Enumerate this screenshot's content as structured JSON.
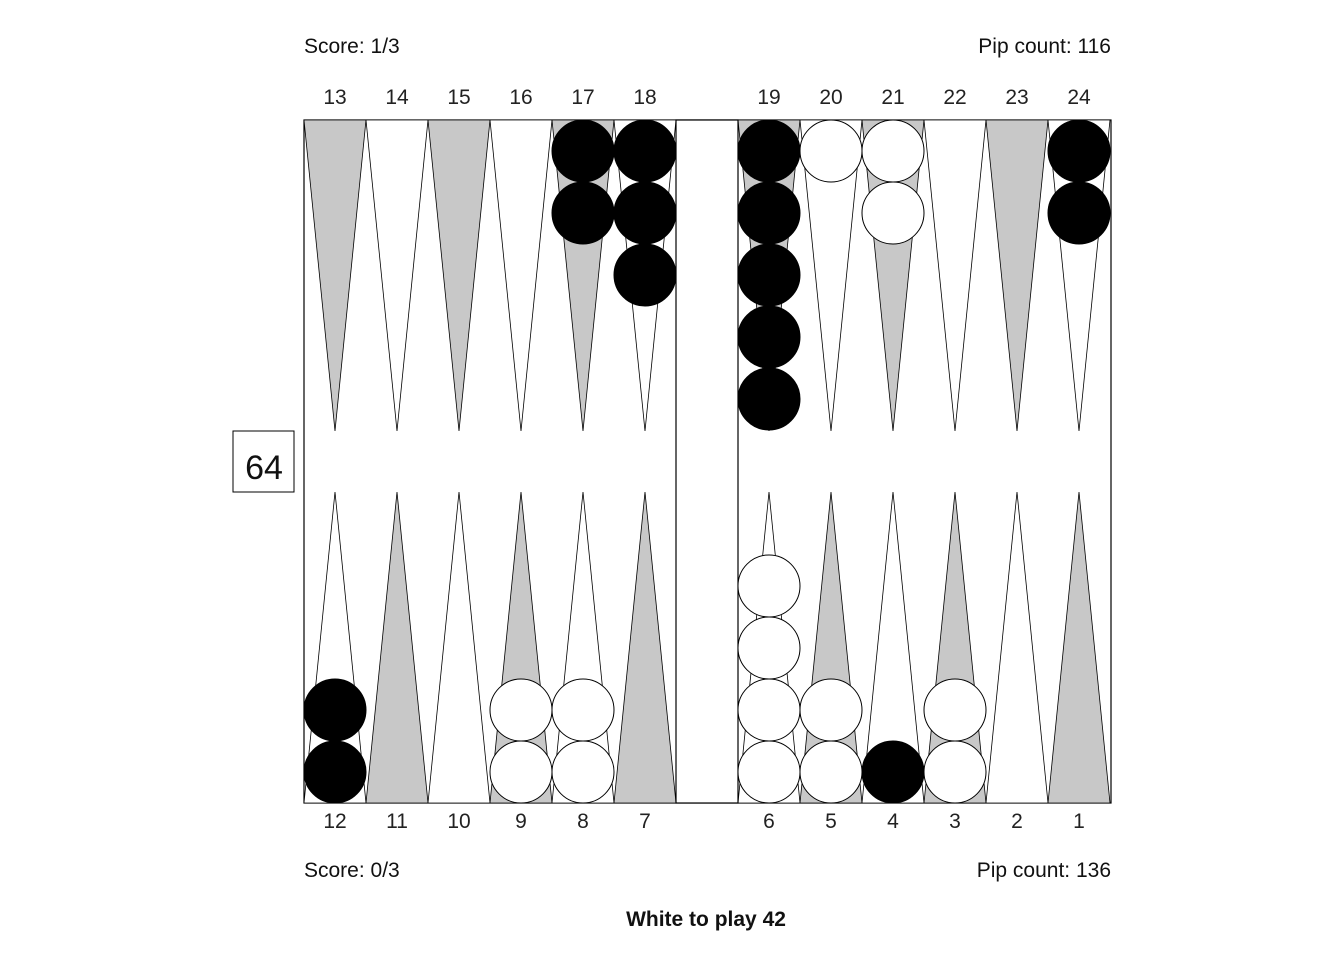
{
  "top_info": {
    "score": "Score: 1/3",
    "pip_count": "Pip count: 116"
  },
  "bottom_info": {
    "score": "Score: 0/3",
    "pip_count": "Pip count: 136"
  },
  "cube": {
    "value": "64"
  },
  "status": {
    "text": "White to play 42"
  },
  "point_labels": {
    "top": [
      "13",
      "14",
      "15",
      "16",
      "17",
      "18",
      "19",
      "20",
      "21",
      "22",
      "23",
      "24"
    ],
    "bottom": [
      "12",
      "11",
      "10",
      "9",
      "8",
      "7",
      "6",
      "5",
      "4",
      "3",
      "2",
      "1"
    ]
  },
  "colors": {
    "shaded_point": "#c8c8c8",
    "plain_point": "#ffffff",
    "black_checker": "#000000",
    "white_checker": "#ffffff",
    "outline": "#000000"
  },
  "position": {
    "top": [
      {
        "point": "13",
        "color": "",
        "count": 0
      },
      {
        "point": "14",
        "color": "",
        "count": 0
      },
      {
        "point": "15",
        "color": "",
        "count": 0
      },
      {
        "point": "16",
        "color": "",
        "count": 0
      },
      {
        "point": "17",
        "color": "black",
        "count": 2
      },
      {
        "point": "18",
        "color": "black",
        "count": 3
      },
      {
        "point": "19",
        "color": "black",
        "count": 5
      },
      {
        "point": "20",
        "color": "white",
        "count": 1
      },
      {
        "point": "21",
        "color": "white",
        "count": 2
      },
      {
        "point": "22",
        "color": "",
        "count": 0
      },
      {
        "point": "23",
        "color": "",
        "count": 0
      },
      {
        "point": "24",
        "color": "black",
        "count": 2
      }
    ],
    "bottom": [
      {
        "point": "12",
        "color": "black",
        "count": 2
      },
      {
        "point": "11",
        "color": "",
        "count": 0
      },
      {
        "point": "10",
        "color": "",
        "count": 0
      },
      {
        "point": "9",
        "color": "white",
        "count": 2
      },
      {
        "point": "8",
        "color": "white",
        "count": 2
      },
      {
        "point": "7",
        "color": "",
        "count": 0
      },
      {
        "point": "6",
        "color": "white",
        "count": 4
      },
      {
        "point": "5",
        "color": "white",
        "count": 2
      },
      {
        "point": "4",
        "color": "black",
        "count": 1
      },
      {
        "point": "3",
        "color": "white",
        "count": 2
      },
      {
        "point": "2",
        "color": "",
        "count": 0
      },
      {
        "point": "1",
        "color": "",
        "count": 0
      }
    ]
  }
}
